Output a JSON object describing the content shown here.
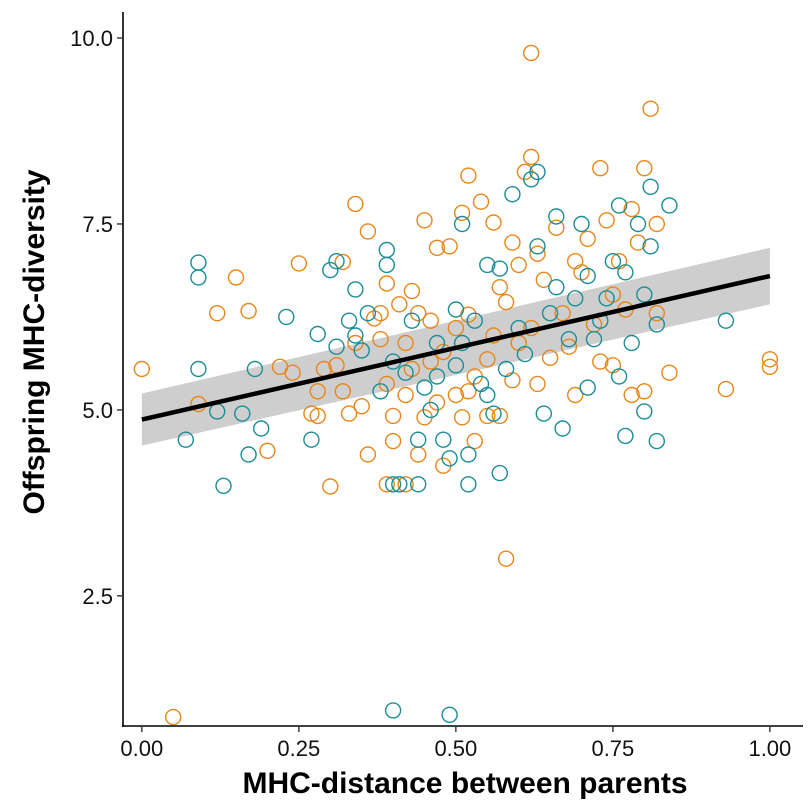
{
  "chart_data": {
    "type": "scatter",
    "title": "",
    "xlabel": "MHC-distance between parents",
    "ylabel": "Offspring MHC-diversity",
    "xlim": [
      -0.03,
      1.04
    ],
    "ylim": [
      0.75,
      10.35
    ],
    "x_ticks": [
      0.0,
      0.25,
      0.5,
      0.75,
      1.0
    ],
    "x_tick_labels": [
      "0.00",
      "0.25",
      "0.50",
      "0.75",
      "1.00"
    ],
    "y_ticks": [
      2.5,
      5.0,
      7.5,
      10.0
    ],
    "y_tick_labels": [
      "2.5",
      "5.0",
      "7.5",
      "10.0"
    ],
    "grid": false,
    "legend": "none",
    "colors": {
      "series_a": "#E8861A",
      "series_b": "#1A8E96",
      "trend_line": "#000000",
      "confidence_band": "#BEBEBE"
    },
    "series": [
      {
        "color": "#E8861A",
        "points": [
          [
            0.0,
            5.55
          ],
          [
            0.05,
            0.87
          ],
          [
            0.09,
            5.08
          ],
          [
            0.12,
            6.3
          ],
          [
            0.15,
            6.78
          ],
          [
            0.17,
            6.33
          ],
          [
            0.2,
            4.45
          ],
          [
            0.22,
            5.58
          ],
          [
            0.24,
            5.5
          ],
          [
            0.25,
            6.97
          ],
          [
            0.27,
            4.95
          ],
          [
            0.28,
            5.25
          ],
          [
            0.28,
            4.92
          ],
          [
            0.29,
            5.55
          ],
          [
            0.3,
            3.97
          ],
          [
            0.31,
            5.6
          ],
          [
            0.32,
            5.25
          ],
          [
            0.32,
            6.99
          ],
          [
            0.33,
            4.95
          ],
          [
            0.34,
            7.77
          ],
          [
            0.34,
            5.9
          ],
          [
            0.35,
            5.05
          ],
          [
            0.36,
            4.4
          ],
          [
            0.36,
            7.4
          ],
          [
            0.37,
            6.23
          ],
          [
            0.38,
            5.95
          ],
          [
            0.38,
            6.3
          ],
          [
            0.39,
            6.7
          ],
          [
            0.39,
            5.35
          ],
          [
            0.39,
            4.0
          ],
          [
            0.4,
            4.92
          ],
          [
            0.4,
            4.58
          ],
          [
            0.41,
            6.42
          ],
          [
            0.42,
            5.2
          ],
          [
            0.42,
            5.9
          ],
          [
            0.42,
            4.0
          ],
          [
            0.43,
            6.6
          ],
          [
            0.43,
            5.55
          ],
          [
            0.44,
            4.4
          ],
          [
            0.44,
            6.3
          ],
          [
            0.45,
            7.55
          ],
          [
            0.45,
            4.9
          ],
          [
            0.46,
            6.2
          ],
          [
            0.46,
            5.65
          ],
          [
            0.47,
            5.1
          ],
          [
            0.47,
            7.18
          ],
          [
            0.48,
            5.78
          ],
          [
            0.48,
            4.25
          ],
          [
            0.49,
            7.2
          ],
          [
            0.5,
            6.1
          ],
          [
            0.5,
            5.2
          ],
          [
            0.51,
            7.65
          ],
          [
            0.51,
            4.9
          ],
          [
            0.52,
            8.15
          ],
          [
            0.52,
            5.25
          ],
          [
            0.52,
            6.28
          ],
          [
            0.53,
            4.58
          ],
          [
            0.53,
            5.45
          ],
          [
            0.54,
            7.8
          ],
          [
            0.55,
            5.68
          ],
          [
            0.55,
            4.92
          ],
          [
            0.56,
            7.52
          ],
          [
            0.56,
            6.0
          ],
          [
            0.57,
            4.92
          ],
          [
            0.57,
            6.65
          ],
          [
            0.58,
            3.0
          ],
          [
            0.58,
            6.45
          ],
          [
            0.59,
            7.25
          ],
          [
            0.59,
            5.4
          ],
          [
            0.6,
            6.95
          ],
          [
            0.6,
            5.9
          ],
          [
            0.61,
            8.2
          ],
          [
            0.62,
            9.8
          ],
          [
            0.62,
            8.4
          ],
          [
            0.62,
            6.1
          ],
          [
            0.63,
            5.35
          ],
          [
            0.63,
            7.1
          ],
          [
            0.64,
            6.75
          ],
          [
            0.65,
            5.7
          ],
          [
            0.66,
            7.45
          ],
          [
            0.67,
            6.3
          ],
          [
            0.68,
            5.85
          ],
          [
            0.69,
            5.2
          ],
          [
            0.69,
            7.0
          ],
          [
            0.7,
            6.85
          ],
          [
            0.71,
            7.3
          ],
          [
            0.72,
            6.15
          ],
          [
            0.73,
            5.65
          ],
          [
            0.73,
            8.25
          ],
          [
            0.74,
            7.55
          ],
          [
            0.75,
            6.55
          ],
          [
            0.75,
            5.6
          ],
          [
            0.76,
            7.0
          ],
          [
            0.77,
            6.35
          ],
          [
            0.78,
            7.7
          ],
          [
            0.78,
            5.2
          ],
          [
            0.79,
            7.25
          ],
          [
            0.8,
            8.25
          ],
          [
            0.8,
            5.25
          ],
          [
            0.81,
            9.05
          ],
          [
            0.82,
            7.5
          ],
          [
            0.82,
            6.3
          ],
          [
            0.84,
            5.5
          ],
          [
            0.93,
            5.28
          ],
          [
            1.0,
            5.68
          ],
          [
            1.0,
            5.58
          ]
        ]
      },
      {
        "color": "#1A8E96",
        "points": [
          [
            0.07,
            4.6
          ],
          [
            0.09,
            6.98
          ],
          [
            0.09,
            6.78
          ],
          [
            0.09,
            5.55
          ],
          [
            0.12,
            4.98
          ],
          [
            0.13,
            3.98
          ],
          [
            0.16,
            4.95
          ],
          [
            0.17,
            4.4
          ],
          [
            0.18,
            5.55
          ],
          [
            0.19,
            4.75
          ],
          [
            0.23,
            6.25
          ],
          [
            0.27,
            4.6
          ],
          [
            0.28,
            6.02
          ],
          [
            0.3,
            6.88
          ],
          [
            0.31,
            7.0
          ],
          [
            0.31,
            5.85
          ],
          [
            0.33,
            6.2
          ],
          [
            0.34,
            6.0
          ],
          [
            0.34,
            6.62
          ],
          [
            0.35,
            5.8
          ],
          [
            0.36,
            6.3
          ],
          [
            0.38,
            5.25
          ],
          [
            0.39,
            7.15
          ],
          [
            0.39,
            6.95
          ],
          [
            0.4,
            5.65
          ],
          [
            0.4,
            4.0
          ],
          [
            0.4,
            0.96
          ],
          [
            0.41,
            4.0
          ],
          [
            0.42,
            5.5
          ],
          [
            0.43,
            6.2
          ],
          [
            0.44,
            4.6
          ],
          [
            0.44,
            4.0
          ],
          [
            0.45,
            5.3
          ],
          [
            0.46,
            5.0
          ],
          [
            0.47,
            5.9
          ],
          [
            0.47,
            5.45
          ],
          [
            0.48,
            4.6
          ],
          [
            0.49,
            4.35
          ],
          [
            0.49,
            0.9
          ],
          [
            0.5,
            5.6
          ],
          [
            0.5,
            6.35
          ],
          [
            0.51,
            7.5
          ],
          [
            0.51,
            5.9
          ],
          [
            0.52,
            4.4
          ],
          [
            0.52,
            4.0
          ],
          [
            0.53,
            6.2
          ],
          [
            0.54,
            5.35
          ],
          [
            0.55,
            5.2
          ],
          [
            0.55,
            6.95
          ],
          [
            0.56,
            4.95
          ],
          [
            0.57,
            4.15
          ],
          [
            0.57,
            6.9
          ],
          [
            0.58,
            5.55
          ],
          [
            0.59,
            7.9
          ],
          [
            0.6,
            6.1
          ],
          [
            0.61,
            5.75
          ],
          [
            0.62,
            8.1
          ],
          [
            0.63,
            8.2
          ],
          [
            0.63,
            7.2
          ],
          [
            0.64,
            4.95
          ],
          [
            0.65,
            6.3
          ],
          [
            0.66,
            7.6
          ],
          [
            0.66,
            6.65
          ],
          [
            0.67,
            4.75
          ],
          [
            0.68,
            5.95
          ],
          [
            0.69,
            6.5
          ],
          [
            0.7,
            7.5
          ],
          [
            0.71,
            5.3
          ],
          [
            0.71,
            6.8
          ],
          [
            0.72,
            5.95
          ],
          [
            0.73,
            6.2
          ],
          [
            0.74,
            6.5
          ],
          [
            0.75,
            7.0
          ],
          [
            0.76,
            7.75
          ],
          [
            0.76,
            5.45
          ],
          [
            0.77,
            6.85
          ],
          [
            0.77,
            4.65
          ],
          [
            0.78,
            5.9
          ],
          [
            0.79,
            7.5
          ],
          [
            0.8,
            6.55
          ],
          [
            0.8,
            4.98
          ],
          [
            0.81,
            8.0
          ],
          [
            0.81,
            7.2
          ],
          [
            0.82,
            6.15
          ],
          [
            0.82,
            4.58
          ],
          [
            0.84,
            7.75
          ],
          [
            0.93,
            6.2
          ]
        ]
      }
    ],
    "trend": {
      "x": [
        0.0,
        1.0
      ],
      "y": [
        4.87,
        6.8
      ],
      "band_lower": [
        4.52,
        6.42
      ],
      "band_upper": [
        5.22,
        7.18
      ]
    }
  }
}
